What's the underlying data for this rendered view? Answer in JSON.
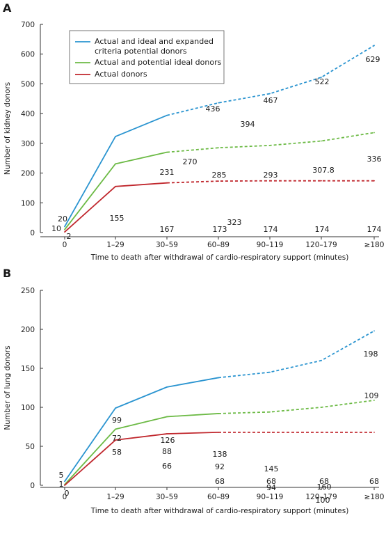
{
  "chart_data": [
    {
      "panel": "A",
      "type": "line",
      "xlabel": "Time to death after withdrawal of cardio-respiratory support (minutes)",
      "ylabel": "Number of kidney donors",
      "ylim": [
        0,
        700
      ],
      "yticks": [
        0,
        100,
        200,
        300,
        400,
        500,
        600,
        700
      ],
      "categories": [
        "0",
        "1–29",
        "30–59",
        "60–89",
        "90–119",
        "120–179",
        "≥180"
      ],
      "solid_through_index": 2,
      "legend": true,
      "legend_position": "top-left",
      "series": [
        {
          "name": "Actual and ideal and expanded criteria potential donors",
          "color": "#2a94d0",
          "values": [
            20,
            323,
            394,
            436,
            467,
            522,
            629
          ],
          "value_labels": [
            "20",
            "323",
            "394",
            "436",
            "467",
            "522",
            "629"
          ]
        },
        {
          "name": "Actual and potential ideal donors",
          "color": "#6cba45",
          "values": [
            10,
            231,
            270,
            285,
            293,
            307.8,
            336
          ],
          "value_labels": [
            "10",
            "231",
            "270",
            "285",
            "293",
            "307.8",
            "336"
          ]
        },
        {
          "name": "Actual donors",
          "color": "#c0272d",
          "values": [
            2,
            155,
            167,
            173,
            174,
            174,
            174
          ],
          "value_labels": [
            "2",
            "155",
            "167",
            "173",
            "174",
            "174",
            "174"
          ]
        }
      ]
    },
    {
      "panel": "B",
      "type": "line",
      "xlabel": "Time to death after withdrawal of cardio-respiratory support (minutes)",
      "ylabel": "Number of lung donors",
      "ylim": [
        0,
        250
      ],
      "yticks": [
        0,
        50,
        100,
        150,
        200,
        250
      ],
      "categories": [
        "0",
        "1–29",
        "30–59",
        "60–89",
        "90–119",
        "120–179",
        "≥180"
      ],
      "legend": false,
      "series": [
        {
          "color": "#2a94d0",
          "solid_through_index": 3,
          "values": [
            5,
            99,
            126,
            138,
            145,
            160,
            198
          ],
          "value_labels": [
            "5",
            "99",
            "126",
            "138",
            "145",
            "160",
            "198"
          ]
        },
        {
          "color": "#6cba45",
          "solid_through_index": 3,
          "values": [
            1,
            72,
            88,
            92,
            94,
            100,
            109
          ],
          "value_labels": [
            "1",
            "72",
            "88",
            "92",
            "94",
            "100",
            "109"
          ]
        },
        {
          "color": "#c0272d",
          "solid_through_index": 3,
          "values": [
            0,
            58,
            66,
            68,
            68,
            68,
            68
          ],
          "value_labels": [
            "0",
            "58",
            "66",
            "68",
            "68",
            "68",
            "68"
          ]
        }
      ]
    }
  ]
}
